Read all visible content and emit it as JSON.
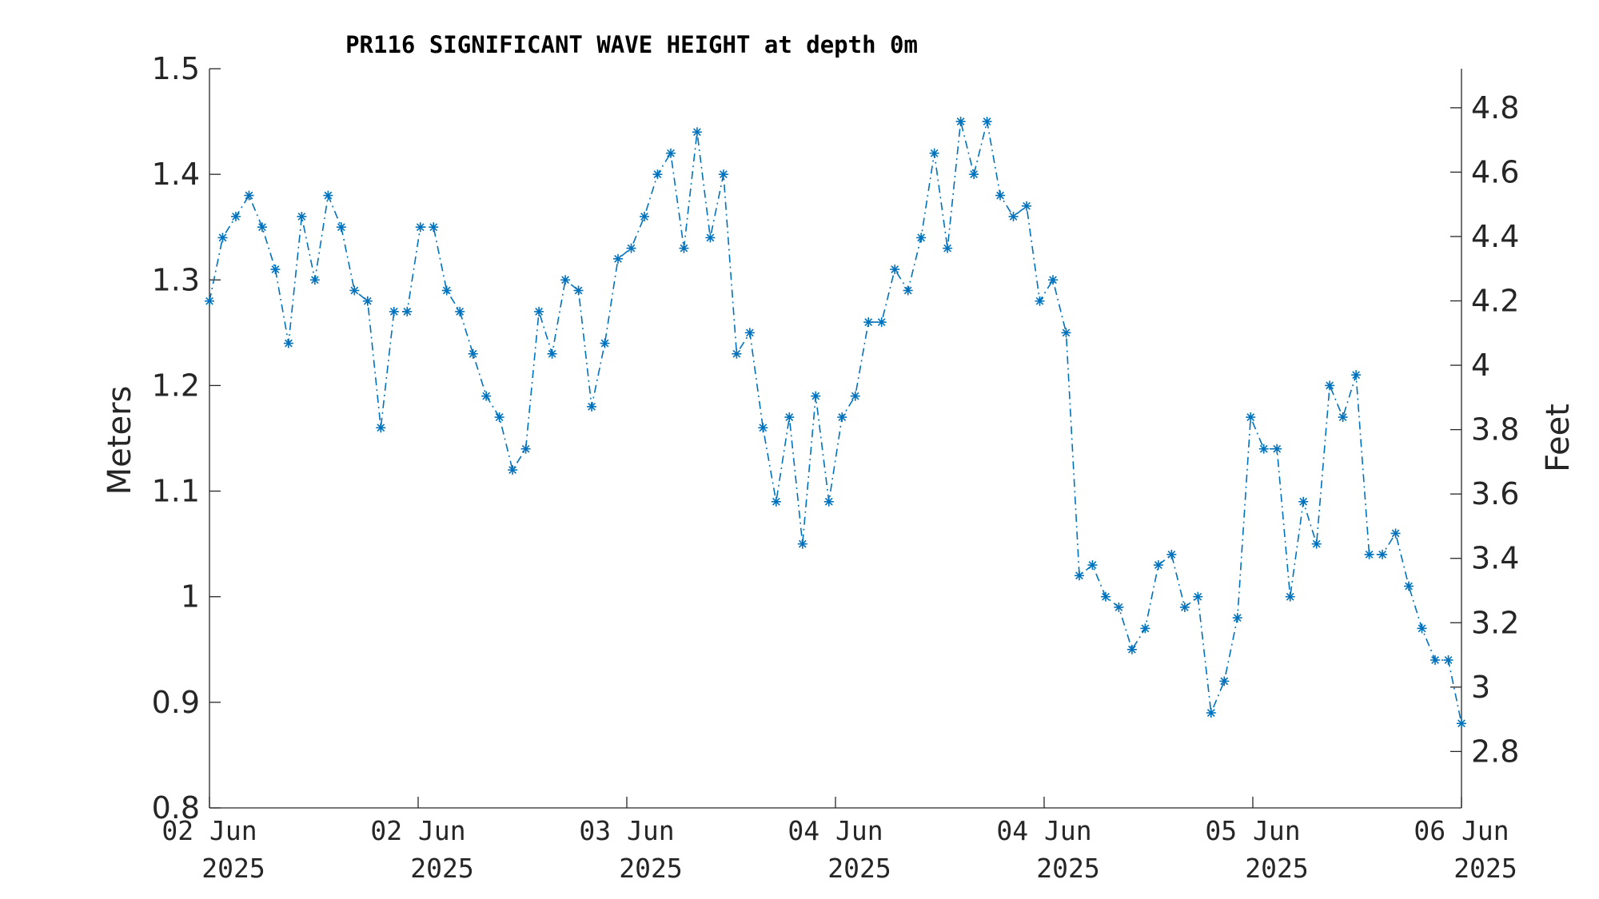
{
  "chart_data": {
    "type": "line",
    "title": "PR116 SIGNIFICANT WAVE HEIGHT at depth 0m",
    "ylabel": "Meters",
    "y2label": "Feet",
    "ylim": [
      0.8,
      1.5
    ],
    "y2lim": [
      2.6247,
      4.9213
    ],
    "yticks": [
      "0.8",
      "0.9",
      "1",
      "1.1",
      "1.2",
      "1.3",
      "1.4",
      "1.5"
    ],
    "y2ticks": [
      "2.8",
      "3",
      "3.2",
      "3.4",
      "3.6",
      "3.8",
      "4",
      "4.2",
      "4.4",
      "4.6",
      "4.8"
    ],
    "xticks": [
      {
        "day": "02 Jun",
        "year": "2025"
      },
      {
        "day": "02 Jun",
        "year": "2025"
      },
      {
        "day": "03 Jun",
        "year": "2025"
      },
      {
        "day": "04 Jun",
        "year": "2025"
      },
      {
        "day": "04 Jun",
        "year": "2025"
      },
      {
        "day": "05 Jun",
        "year": "2025"
      },
      {
        "day": "06 Jun",
        "year": "2025"
      }
    ],
    "grid": false,
    "marker": "asterisk",
    "line_style": "dash-dot",
    "color": "#0072BD",
    "series": [
      {
        "values": [
          1.28,
          1.34,
          1.36,
          1.38,
          1.35,
          1.31,
          1.24,
          1.36,
          1.3,
          1.38,
          1.35,
          1.29,
          1.28,
          1.16,
          1.27,
          1.27,
          1.35,
          1.35,
          1.29,
          1.27,
          1.23,
          1.19,
          1.17,
          1.12,
          1.14,
          1.27,
          1.23,
          1.3,
          1.29,
          1.18,
          1.24,
          1.32,
          1.33,
          1.36,
          1.4,
          1.42,
          1.33,
          1.44,
          1.34,
          1.4,
          1.23,
          1.25,
          1.16,
          1.09,
          1.17,
          1.05,
          1.19,
          1.09,
          1.17,
          1.19,
          1.26,
          1.26,
          1.31,
          1.29,
          1.34,
          1.42,
          1.33,
          1.45,
          1.4,
          1.45,
          1.38,
          1.36,
          1.37,
          1.28,
          1.3,
          1.25,
          1.02,
          1.03,
          1.0,
          0.99,
          0.95,
          0.97,
          1.03,
          1.04,
          0.99,
          1.0,
          0.89,
          0.92,
          0.98,
          1.17,
          1.14,
          1.14,
          1.0,
          1.09,
          1.05,
          1.2,
          1.17,
          1.21,
          1.04,
          1.04,
          1.06,
          1.01,
          0.97,
          0.94,
          0.94,
          0.88
        ]
      }
    ]
  }
}
